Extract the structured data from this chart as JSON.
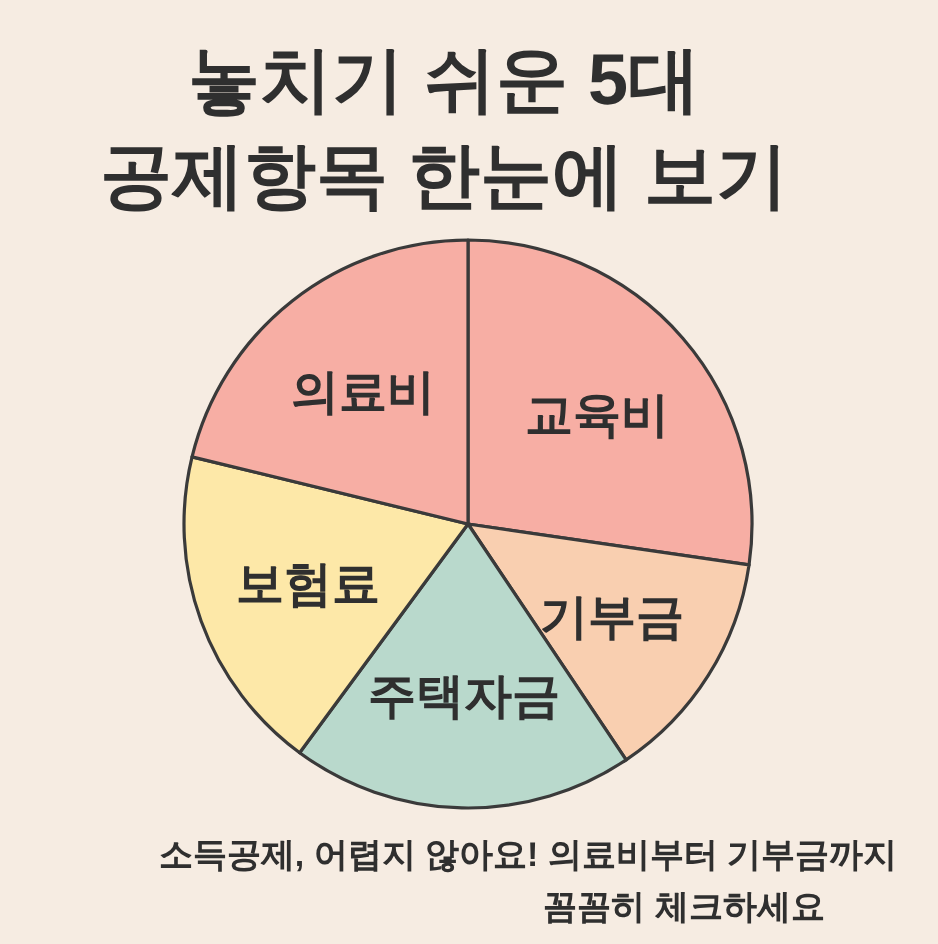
{
  "chart_data": {
    "type": "pie",
    "title": "놓치기 쉬운 5대\n공제항목 한눈에 보기",
    "categories": [
      "교육비",
      "기부금",
      "주택자금",
      "보험료",
      "의료비"
    ],
    "values": [
      27.3,
      13.3,
      19.5,
      18.7,
      21.2
    ],
    "colors": [
      "#f7aea4",
      "#f9cfb0",
      "#b9d9cc",
      "#fde8a8",
      "#f7aea4"
    ],
    "annotations": [
      "소득공제, 어렵지 않아요! 의료비부터 기부금까지\n꼼꼼히 체크하세요"
    ]
  }
}
